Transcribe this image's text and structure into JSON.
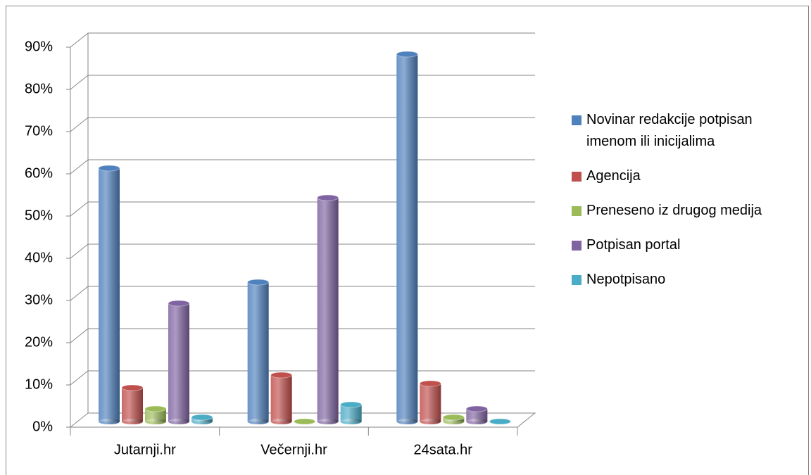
{
  "chart_data": {
    "type": "bar",
    "categories": [
      "Jutarnji.hr",
      "Večernji.hr",
      "24sata.hr"
    ],
    "series": [
      {
        "name": "Novinar redakcije potpisan imenom ili inicijalima",
        "color": "#4f81bd",
        "values": [
          60,
          33,
          87
        ]
      },
      {
        "name": "Agencija",
        "color": "#c0504d",
        "values": [
          8,
          11,
          9
        ]
      },
      {
        "name": "Preneseno iz drugog medija",
        "color": "#9bbb59",
        "values": [
          3,
          0,
          1
        ]
      },
      {
        "name": "Potpisan portal",
        "color": "#8064a2",
        "values": [
          28,
          53,
          3
        ]
      },
      {
        "name": "Nepotpisano",
        "color": "#4bacc6",
        "values": [
          1,
          4,
          0
        ]
      }
    ],
    "ylim": [
      0,
      90
    ],
    "yticks": [
      {
        "value": 0,
        "label": "0%"
      },
      {
        "value": 10,
        "label": "10%"
      },
      {
        "value": 20,
        "label": "20%"
      },
      {
        "value": 30,
        "label": "30%"
      },
      {
        "value": 40,
        "label": "40%"
      },
      {
        "value": 50,
        "label": "50%"
      },
      {
        "value": 60,
        "label": "60%"
      },
      {
        "value": 70,
        "label": "70%"
      },
      {
        "value": 80,
        "label": "80%"
      },
      {
        "value": 90,
        "label": "90%"
      }
    ],
    "grid": true
  }
}
